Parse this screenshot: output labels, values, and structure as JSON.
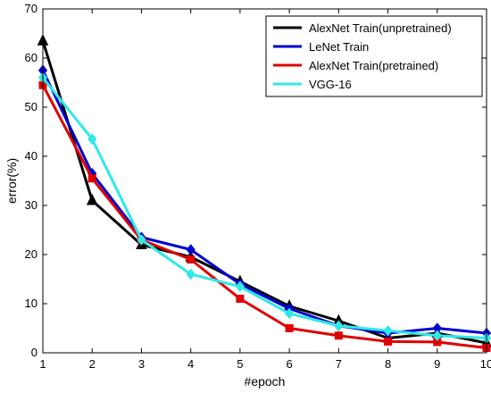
{
  "chart_data": {
    "type": "line",
    "title": "",
    "xlabel": "#epoch",
    "ylabel": "error(%)",
    "x": [
      1,
      2,
      3,
      4,
      5,
      6,
      7,
      8,
      9,
      10
    ],
    "xlim": [
      1,
      10
    ],
    "ylim": [
      0,
      70
    ],
    "xticks": [
      "1",
      "2",
      "3",
      "4",
      "5",
      "6",
      "7",
      "8",
      "9",
      "10"
    ],
    "yticks": [
      "0",
      "10",
      "20",
      "30",
      "40",
      "50",
      "60",
      "70"
    ],
    "grid": false,
    "legend_position": "top-right",
    "series": [
      {
        "name": "AlexNet Train(unpretrained)",
        "color": "#000000",
        "marker": "triangle",
        "values": [
          63.5,
          31.0,
          22.0,
          19.5,
          14.5,
          9.5,
          6.5,
          3.0,
          4.0,
          2.0
        ]
      },
      {
        "name": "LeNet Train",
        "color": "#0000d0",
        "marker": "diamond",
        "values": [
          57.5,
          36.5,
          23.5,
          21.0,
          14.0,
          9.0,
          5.5,
          4.0,
          5.0,
          4.0
        ]
      },
      {
        "name": "AlexNet Train(pretrained)",
        "color": "#e00000",
        "marker": "square",
        "values": [
          54.5,
          35.5,
          23.0,
          19.0,
          11.0,
          5.0,
          3.5,
          2.3,
          2.2,
          1.0
        ]
      },
      {
        "name": "VGG-16",
        "color": "#30e8e8",
        "marker": "diamond",
        "values": [
          56.0,
          43.5,
          23.0,
          16.0,
          13.5,
          8.0,
          5.5,
          4.5,
          3.5,
          3.0
        ]
      }
    ]
  }
}
